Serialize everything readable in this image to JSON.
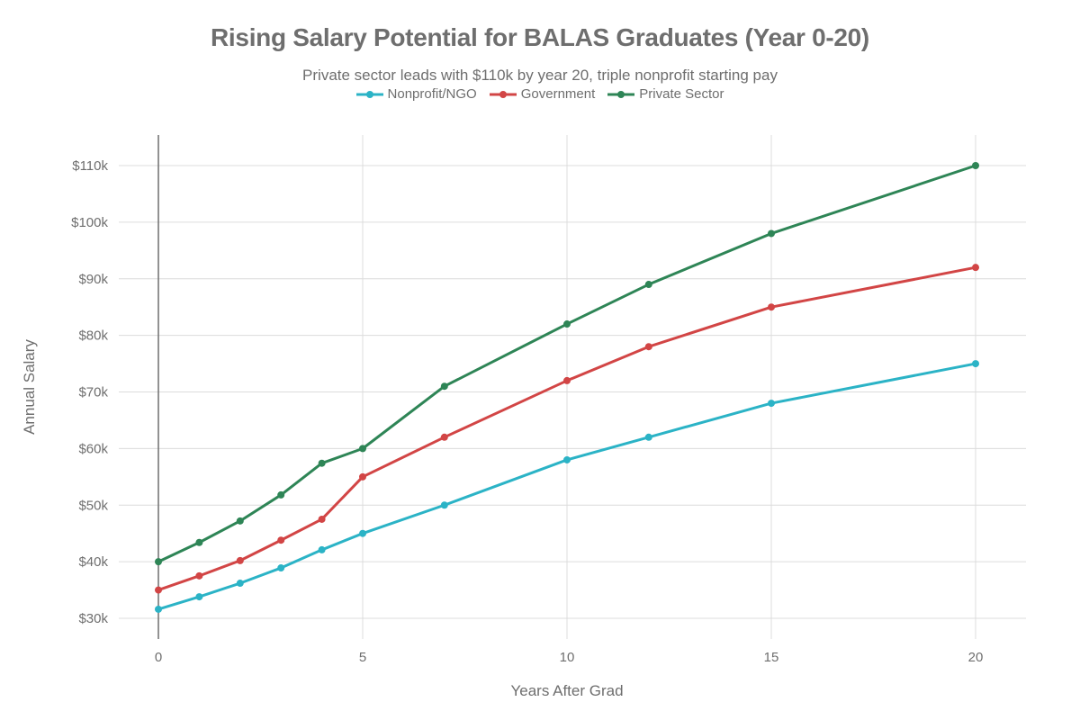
{
  "title": "Rising Salary Potential for BALAS Graduates (Year 0-20)",
  "subtitle": "Private sector leads with $110k by year 20, triple nonprofit starting pay",
  "legend": [
    {
      "label": "Nonprofit/NGO",
      "color": "#2bb3c6"
    },
    {
      "label": "Government",
      "color": "#d24545"
    },
    {
      "label": "Private Sector",
      "color": "#2e8556"
    }
  ],
  "axes": {
    "xlabel": "Years After Grad",
    "ylabel": "Annual Salary",
    "xticks": [
      "0",
      "5",
      "10",
      "15",
      "20"
    ],
    "yticks": [
      "$30k",
      "$40k",
      "$50k",
      "$60k",
      "$70k",
      "$80k",
      "$90k",
      "$100k",
      "$110k"
    ]
  },
  "chart_data": {
    "type": "line",
    "title": "Rising Salary Potential for BALAS Graduates (Year 0-20)",
    "subtitle": "Private sector leads with $110k by year 20, triple nonprofit starting pay",
    "xlabel": "Years After Grad",
    "ylabel": "Annual Salary",
    "x": [
      0,
      1,
      2,
      3,
      4,
      5,
      7,
      10,
      12,
      15,
      20
    ],
    "xlim": [
      -1,
      21
    ],
    "ylim": [
      26500,
      115000
    ],
    "xticks": [
      0,
      5,
      10,
      15,
      20
    ],
    "yticks": [
      30000,
      40000,
      50000,
      60000,
      70000,
      80000,
      90000,
      100000,
      110000
    ],
    "grid": true,
    "legend_position": "top-center",
    "series": [
      {
        "name": "Nonprofit/NGO",
        "color": "#2bb3c6",
        "values": [
          31600,
          33800,
          36200,
          38900,
          42100,
          45000,
          50000,
          58000,
          62000,
          68000,
          75000
        ]
      },
      {
        "name": "Government",
        "color": "#d24545",
        "values": [
          35000,
          37500,
          40200,
          43800,
          47500,
          55000,
          62000,
          72000,
          78000,
          85000,
          92000
        ]
      },
      {
        "name": "Private Sector",
        "color": "#2e8556",
        "values": [
          40000,
          43400,
          47200,
          51800,
          57400,
          60000,
          71000,
          82000,
          89000,
          98000,
          110000
        ]
      }
    ]
  }
}
